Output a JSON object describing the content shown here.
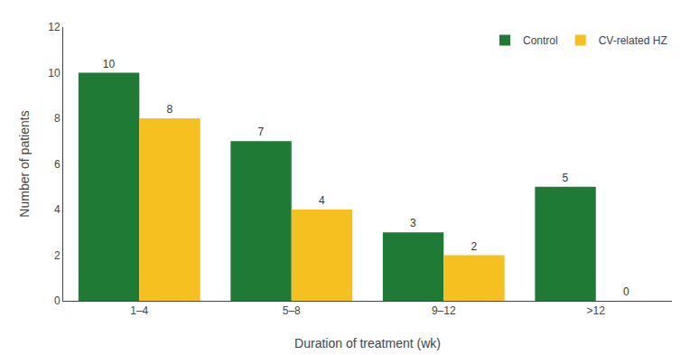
{
  "chart_data": {
    "type": "bar",
    "categories": [
      "1–4",
      "5–8",
      "9–12",
      ">12"
    ],
    "series": [
      {
        "name": "Control",
        "color": "#1e7a34",
        "values": [
          10,
          7,
          3,
          5
        ]
      },
      {
        "name": "CV-related HZ",
        "color": "#f5c020",
        "values": [
          8,
          4,
          2,
          0
        ]
      }
    ],
    "xlabel": "Duration of treatment (wk)",
    "ylabel": "Number of patients",
    "ylim": [
      0,
      12
    ],
    "yticks": [
      0,
      2,
      4,
      6,
      8,
      10,
      12
    ],
    "grid": false,
    "legend": "upper right",
    "data_labels": true
  }
}
